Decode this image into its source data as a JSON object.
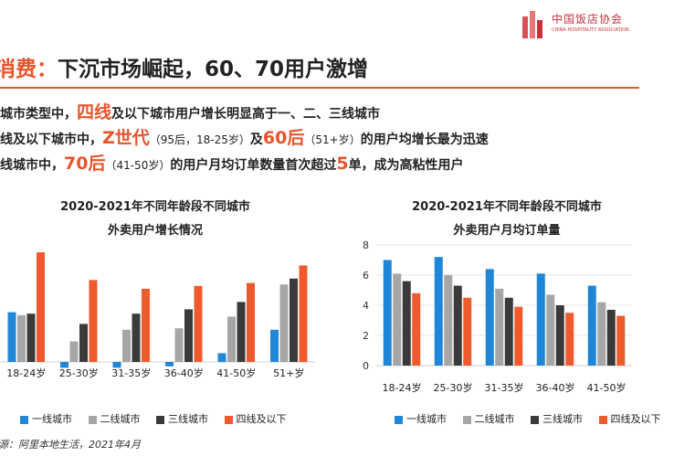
{
  "logo": {
    "cn": "中国饭店协会",
    "en": "CHINA HOSPITALITY ASSOCIATION"
  },
  "header": {
    "title_key": "消费：",
    "title_rest": "下沉市场崛起，60、70用户激增"
  },
  "bullets": [
    {
      "parts": [
        "城市类型中，",
        "四线",
        "及以下城市用户增长明显高于一、二、三线城市"
      ]
    },
    {
      "parts": [
        "线及以下城市中，",
        "Z世代",
        "（95后，18-25岁）",
        "及",
        "60后",
        "（51+岁）",
        "的用户均增长最为迅速"
      ]
    },
    {
      "parts": [
        "线城市中，",
        "70后",
        "（41-50岁）",
        "的用户月均订单数量首次超过",
        "5",
        "单，成为高粘性用户"
      ]
    }
  ],
  "colors": {
    "accent": "#e8542b",
    "s1": "#1f86d8",
    "s2": "#a6a6a6",
    "s3": "#3a3a3a",
    "s4": "#ee5a2c"
  },
  "source": "源：阿里本地生活，2021年4月",
  "legend": [
    "一线城市",
    "二线城市",
    "三线城市",
    "四线及以下"
  ],
  "chart_data": [
    {
      "type": "bar",
      "title": "2020-2021年不同年龄段不同城市",
      "subtitle": "外卖用户增长情况",
      "categories": [
        "18-24岁",
        "25-30岁",
        "31-35岁",
        "36-40岁",
        "41-50岁",
        "51+岁"
      ],
      "series": [
        {
          "name": "一线城市",
          "values": [
            3.4,
            -0.4,
            -0.4,
            -0.3,
            0.6,
            2.2
          ]
        },
        {
          "name": "二线城市",
          "values": [
            3.2,
            1.4,
            2.2,
            2.3,
            3.1,
            5.3
          ]
        },
        {
          "name": "三线城市",
          "values": [
            3.3,
            2.6,
            3.3,
            3.6,
            4.1,
            5.7
          ]
        },
        {
          "name": "四线及以下",
          "values": [
            7.5,
            5.6,
            5.0,
            5.2,
            5.4,
            6.6
          ]
        }
      ],
      "ylim": [
        -1,
        8
      ],
      "show_y_ticks": false
    },
    {
      "type": "bar",
      "title": "2020-2021年不同年龄段不同城市",
      "subtitle": "外卖用户月均订单量",
      "categories": [
        "18-24岁",
        "25-30岁",
        "31-35岁",
        "36-40岁",
        "41-50岁"
      ],
      "series": [
        {
          "name": "一线城市",
          "values": [
            7.0,
            7.2,
            6.4,
            6.1,
            5.3
          ]
        },
        {
          "name": "二线城市",
          "values": [
            6.1,
            6.0,
            5.1,
            4.7,
            4.2
          ]
        },
        {
          "name": "三线城市",
          "values": [
            5.6,
            5.3,
            4.5,
            4.0,
            3.7
          ]
        },
        {
          "name": "四线及以下",
          "values": [
            4.8,
            4.5,
            3.9,
            3.5,
            3.3
          ]
        }
      ],
      "ylim": [
        0,
        8
      ],
      "yticks": [
        0,
        2,
        4,
        6,
        8
      ],
      "show_y_ticks": true
    }
  ]
}
